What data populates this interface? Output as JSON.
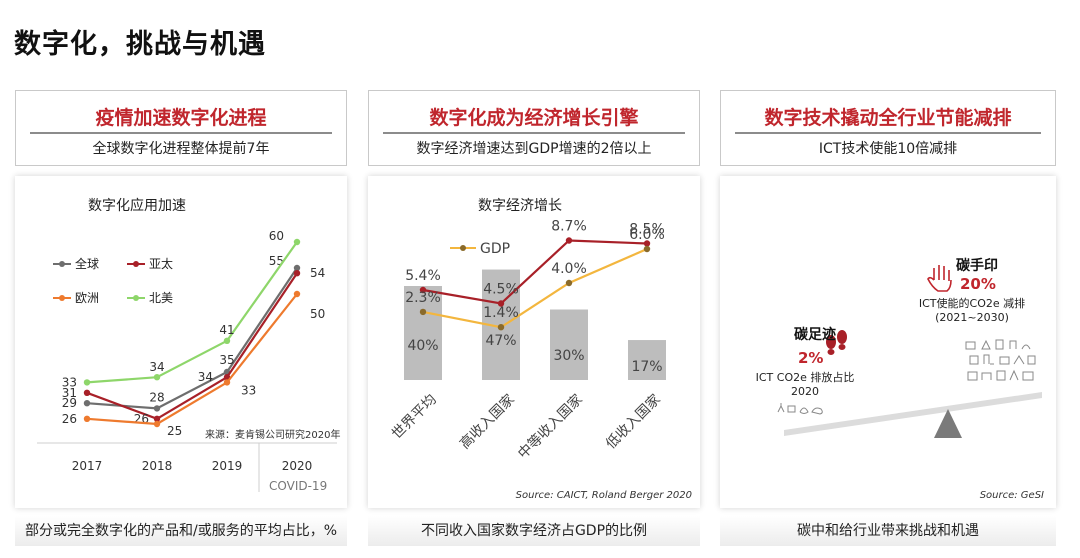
{
  "page": {
    "title": "数字化，挑战与机遇"
  },
  "panels": [
    {
      "title": "疫情加速数字化进程",
      "subtitle": "全球数字化进程整体提前7年",
      "caption": "部分或完全数字化的产品和/或服务的平均占比，%"
    },
    {
      "title": "数字化成为经济增长引擎",
      "subtitle": "数字经济增速达到GDP增速的2倍以上",
      "caption": "不同收入国家数字经济占GDP的比例"
    },
    {
      "title": "数字技术撬动全行业节能减排",
      "subtitle": "ICT技术使能10倍减排",
      "caption": "碳中和给行业带来挑战和机遇"
    }
  ],
  "chart_data": [
    {
      "type": "line",
      "title": "数字化应用加速",
      "x": [
        "2017",
        "2018",
        "2019",
        "2020"
      ],
      "series": [
        {
          "name": "全球",
          "color": "#6e6e6e",
          "values": [
            29,
            28,
            35,
            55
          ]
        },
        {
          "name": "亚太",
          "color": "#a82028",
          "values": [
            31,
            26,
            34,
            54
          ]
        },
        {
          "name": "欧洲",
          "color": "#ee7a2e",
          "values": [
            26,
            25,
            33,
            50
          ]
        },
        {
          "name": "北美",
          "color": "#8ed66a",
          "values": [
            33,
            34,
            41,
            60
          ]
        }
      ],
      "annotation": "COVID-19",
      "source": "来源：麦肯锡公司研究2020年",
      "ylim": [
        20,
        65
      ]
    },
    {
      "type": "bar",
      "title": "数字经济增长",
      "categories": [
        "世界平均",
        "高收入国家",
        "中等收入国家",
        "低收入国家"
      ],
      "bar_values": [
        40,
        47,
        30,
        17
      ],
      "bar_labels": [
        "40%",
        "47%",
        "30%",
        "17%"
      ],
      "bar_color": "#bdbdbd",
      "series": [
        {
          "name": "",
          "color": "#a82028",
          "values": [
            5.4,
            4.5,
            8.7,
            8.5
          ],
          "labels": [
            "5.4%",
            "4.5%",
            "8.7%",
            "8.5%"
          ]
        },
        {
          "name": "GDP",
          "color": "#f3b63e",
          "values": [
            2.3,
            1.4,
            4.0,
            6.0
          ],
          "labels": [
            "2.3%",
            "1.4%",
            "4.0%",
            "6.0%"
          ]
        }
      ],
      "source": "Source:  CAICT, Roland Berger 2020"
    }
  ],
  "carbon": {
    "footprint": {
      "label": "碳足迹",
      "value": "2%",
      "desc": "ICT CO2e 排放占比",
      "year": "2020",
      "icon": "footprints-icon"
    },
    "handprint": {
      "label": "碳手印",
      "value": "20%",
      "desc": "ICT使能的CO2e 减排",
      "years": "(2021~2030)",
      "icon": "hand-icon"
    },
    "source": "Source:  GeSI",
    "accent": "#c0262d"
  }
}
